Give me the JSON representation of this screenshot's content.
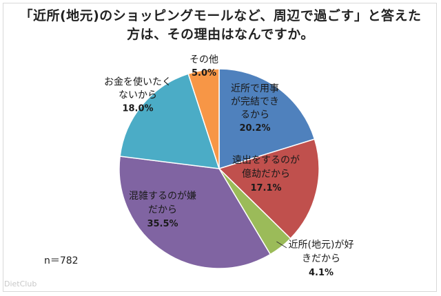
{
  "chart_data": {
    "type": "pie",
    "title_line1": "「近所(地元)のショッピングモールなど、周辺で過ごす」と答えた",
    "title_line2": "方は、その理由はなんですか。",
    "slices": [
      {
        "label_lines": [
          "近所で用事",
          "が完結でき",
          "るから"
        ],
        "value": 20.2,
        "value_text": "20.2%",
        "color": "#4f81bd"
      },
      {
        "label_lines": [
          "遠出をするのが",
          "億劫だから"
        ],
        "value": 17.1,
        "value_text": "17.1%",
        "color": "#c0504d"
      },
      {
        "label_lines": [
          "近所(地元)が好",
          "きだから"
        ],
        "value": 4.1,
        "value_text": "4.1%",
        "color": "#9bbb59"
      },
      {
        "label_lines": [
          "混雑するのが嫌",
          "だから"
        ],
        "value": 35.5,
        "value_text": "35.5%",
        "color": "#8064a2"
      },
      {
        "label_lines": [
          "お金を使いたく",
          "ないから"
        ],
        "value": 18.0,
        "value_text": "18.0%",
        "color": "#4bacc6"
      },
      {
        "label_lines": [
          "その他"
        ],
        "value": 5.0,
        "value_text": "5.0%",
        "color": "#f79646"
      }
    ],
    "n_text": "n＝782"
  },
  "watermark": "DietClub"
}
